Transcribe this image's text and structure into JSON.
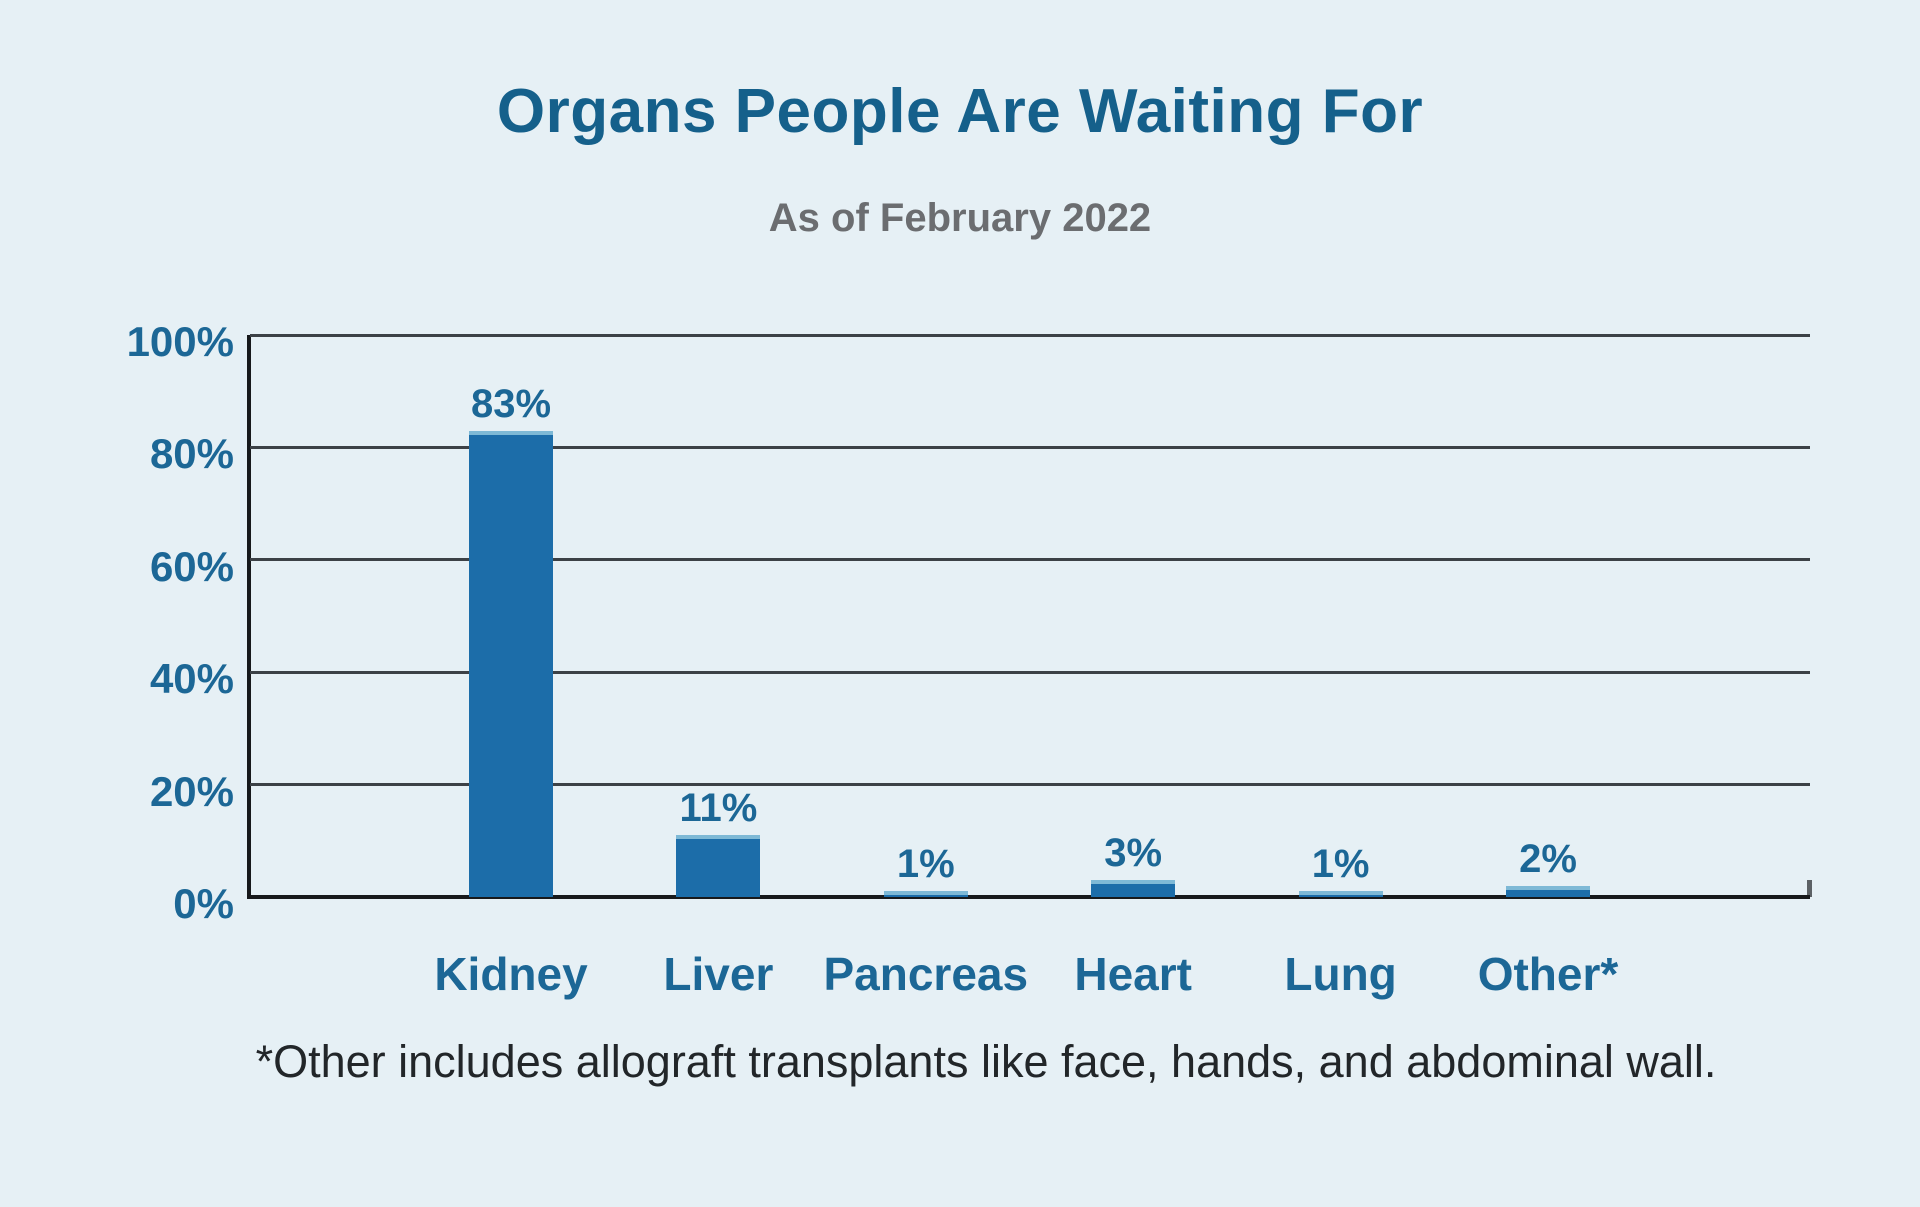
{
  "header": {
    "title": "Organs People Are Waiting For",
    "subtitle": "As of February 2022"
  },
  "chart_data": {
    "type": "bar",
    "title": "Organs People Are Waiting For",
    "subtitle": "As of February 2022",
    "categories": [
      "Kidney",
      "Liver",
      "Pancreas",
      "Heart",
      "Lung",
      "Other*"
    ],
    "values": [
      83,
      11,
      1,
      3,
      1,
      2
    ],
    "value_labels": [
      "83%",
      "11%",
      "1%",
      "3%",
      "1%",
      "2%"
    ],
    "xlabel": "",
    "ylabel": "",
    "ylim": [
      0,
      100
    ],
    "ytick_values": [
      100,
      80,
      60,
      40,
      20,
      0
    ],
    "ytick_labels": [
      "100%",
      "80%",
      "60%",
      "40%",
      "20%",
      "0%"
    ],
    "grid": "horizontal-on",
    "legend": "none",
    "bar_color": "#1c6da9",
    "bar_top_edge_color": "#7eb9d6",
    "label_color": "#1c6796",
    "title_color": "#15608b",
    "subtitle_color": "#6b6d70",
    "gridline_color": "#3c4146",
    "axis_color": "#17191b",
    "background_color": "#e6f0f5"
  },
  "footnote": {
    "text": "*Other includes allograft transplants like face, hands, and abdominal wall."
  }
}
